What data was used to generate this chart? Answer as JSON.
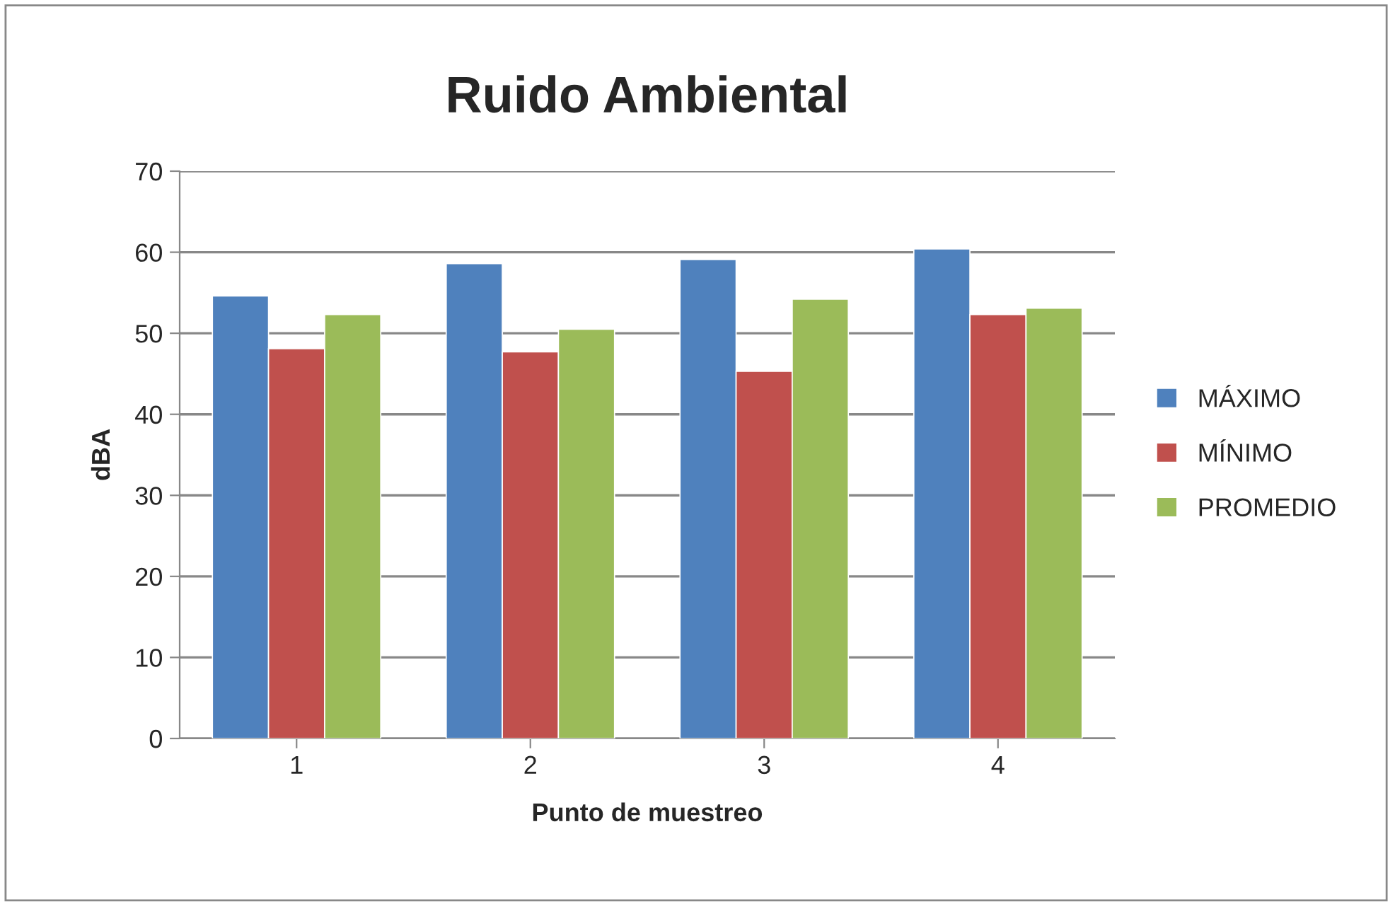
{
  "chart_data": {
    "type": "bar",
    "title": "Ruido Ambiental",
    "xlabel": "Punto de muestreo",
    "ylabel": "dBA",
    "categories": [
      "1",
      "2",
      "3",
      "4"
    ],
    "series": [
      {
        "name": "MÁXIMO",
        "color": "#4f81bd",
        "values": [
          54.6,
          58.6,
          59.1,
          60.4
        ]
      },
      {
        "name": "MÍNIMO",
        "color": "#c0504d",
        "values": [
          48.1,
          47.7,
          45.3,
          52.3
        ]
      },
      {
        "name": "PROMEDIO",
        "color": "#9bbb59",
        "values": [
          52.3,
          50.5,
          54.2,
          53.1
        ]
      }
    ],
    "ylim": [
      0,
      70
    ],
    "yticks": [
      0,
      10,
      20,
      30,
      40,
      50,
      60,
      70
    ],
    "grid": "y",
    "legend": "right"
  }
}
